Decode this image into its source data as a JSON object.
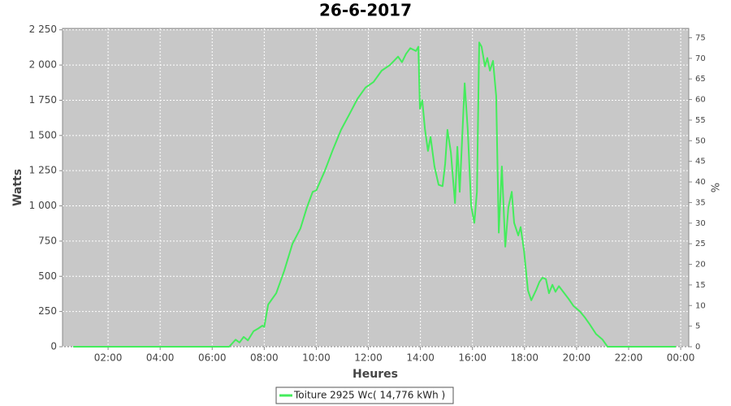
{
  "chart_data": {
    "type": "line",
    "title": "26-6-2017",
    "x_label": "Heures",
    "y_label": "Watts",
    "y2_label": "%",
    "x": [
      0.66,
      6.65,
      6.9,
      7.05,
      7.21,
      7.37,
      7.59,
      7.77,
      7.93,
      8.0,
      8.15,
      8.46,
      8.77,
      9.08,
      9.39,
      9.64,
      9.86,
      10.0,
      10.33,
      10.64,
      10.95,
      11.27,
      11.58,
      11.89,
      12.2,
      12.51,
      12.83,
      13.14,
      13.29,
      13.45,
      13.61,
      13.83,
      13.92,
      13.98,
      14.07,
      14.17,
      14.29,
      14.39,
      14.54,
      14.7,
      14.85,
      14.95,
      15.04,
      15.17,
      15.33,
      15.42,
      15.51,
      15.7,
      15.82,
      15.95,
      16.07,
      16.17,
      16.26,
      16.35,
      16.48,
      16.57,
      16.67,
      16.79,
      16.91,
      17.01,
      17.13,
      17.26,
      17.38,
      17.51,
      17.6,
      17.76,
      17.85,
      17.98,
      18.13,
      18.26,
      18.44,
      18.57,
      18.69,
      18.82,
      18.94,
      19.07,
      19.19,
      19.32,
      19.69,
      19.88,
      20.13,
      20.31,
      20.5,
      20.75,
      21.0,
      21.19,
      23.81
    ],
    "series": [
      {
        "name": "Toiture 2925 Wc( 14,776 kWh )",
        "color": "#44ec5c",
        "values": [
          0,
          0,
          50,
          30,
          70,
          45,
          110,
          130,
          150,
          140,
          300,
          380,
          540,
          730,
          840,
          990,
          1100,
          1110,
          1250,
          1400,
          1540,
          1650,
          1760,
          1840,
          1880,
          1960,
          2000,
          2060,
          2020,
          2080,
          2120,
          2100,
          2130,
          1690,
          1750,
          1550,
          1390,
          1490,
          1280,
          1150,
          1140,
          1300,
          1540,
          1380,
          1020,
          1420,
          1100,
          1870,
          1540,
          1000,
          880,
          1100,
          2160,
          2130,
          1990,
          2050,
          1960,
          2030,
          1780,
          810,
          1280,
          710,
          990,
          1100,
          880,
          790,
          850,
          680,
          400,
          330,
          400,
          460,
          490,
          480,
          380,
          440,
          390,
          430,
          340,
          290,
          250,
          210,
          160,
          90,
          50,
          0,
          0
        ]
      }
    ],
    "xlim": [
      0.25,
      24.31
    ],
    "xticks": [
      {
        "value": 2,
        "label": "02:00"
      },
      {
        "value": 4,
        "label": "04:00"
      },
      {
        "value": 6,
        "label": "06:00"
      },
      {
        "value": 8,
        "label": "08:00"
      },
      {
        "value": 10,
        "label": "10:00"
      },
      {
        "value": 12,
        "label": "12:00"
      },
      {
        "value": 14,
        "label": "14:00"
      },
      {
        "value": 16,
        "label": "16:00"
      },
      {
        "value": 18,
        "label": "18:00"
      },
      {
        "value": 20,
        "label": "20:00"
      },
      {
        "value": 22,
        "label": "22:00"
      },
      {
        "value": 24,
        "label": "00:00"
      }
    ],
    "ylim": [
      0,
      2260
    ],
    "yticks": [
      0,
      250,
      500,
      750,
      {
        "value": 1000,
        "label": "1 000"
      },
      {
        "value": 1250,
        "label": "1 250"
      },
      {
        "value": 1500,
        "label": "1 500"
      },
      {
        "value": 1750,
        "label": "1 750"
      },
      {
        "value": 2000,
        "label": "2 000"
      },
      {
        "value": 2250,
        "label": "2 250"
      }
    ],
    "y2lim": [
      0,
      77.26
    ],
    "y2ticks": [
      0,
      5,
      10,
      15,
      20,
      25,
      30,
      35,
      40,
      45,
      50,
      55,
      60,
      65,
      70,
      75
    ],
    "grid": true
  }
}
